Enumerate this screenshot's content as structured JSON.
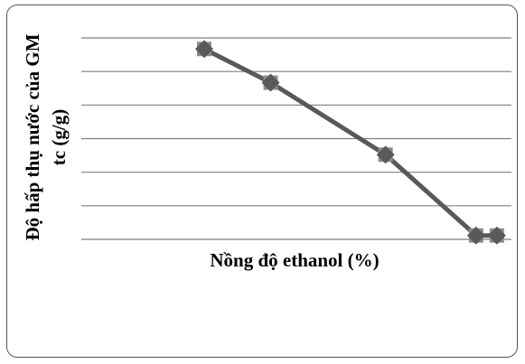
{
  "chart_data": {
    "type": "line",
    "title": "",
    "xlabel": "Nồng độ ethanol (%)",
    "ylabel_lines": [
      "Độ hấp thụ nước của GM",
      "tc (g/g)"
    ],
    "x_ticks_shown": false,
    "y_ticks_shown": false,
    "grid": "horizontal",
    "grid_line_count": 7,
    "legend": "none",
    "colors": {
      "line": "#595959",
      "marker": "#8c8c8c",
      "grid": "#7f7f7f"
    },
    "series": [
      {
        "x": [
          1,
          2,
          3,
          4,
          5
        ],
        "values": [
          6.2,
          4.98,
          2.37,
          -0.56,
          -0.56
        ]
      }
    ],
    "x_positions_note_free": true,
    "ylim": [
      -0.7,
      6.6
    ],
    "point_slots": [
      0.0,
      0.2202,
      0.6008,
      0.9008,
      0.9697
    ]
  }
}
